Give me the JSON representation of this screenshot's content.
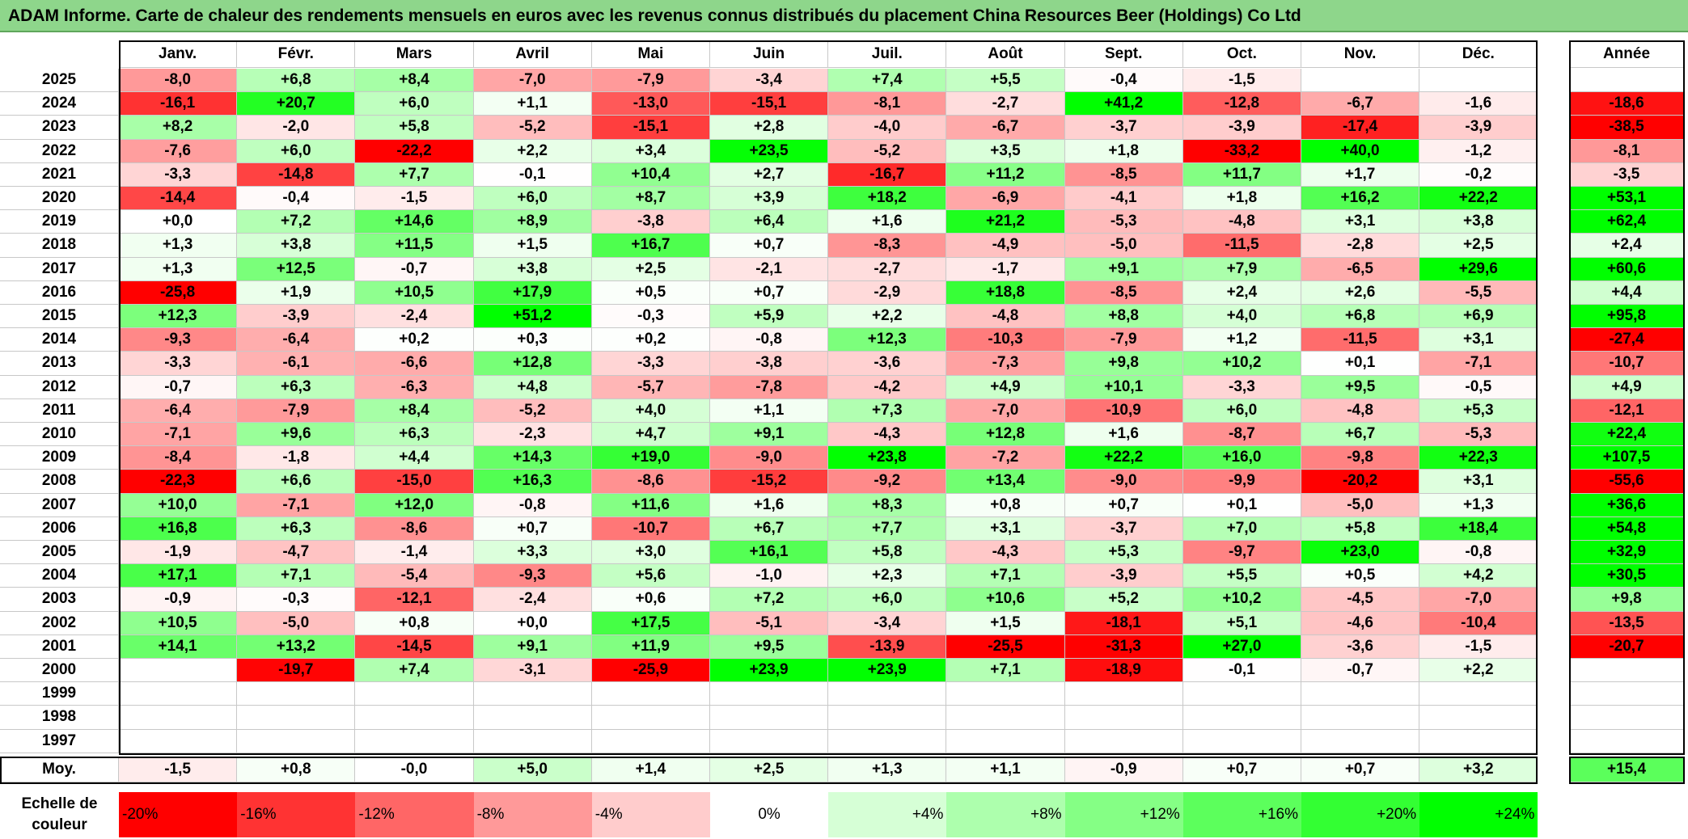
{
  "title": "ADAM Informe. Carte de chaleur des rendements mensuels en euros avec les revenus connus distribués du placement China Resources Beer (Holdings) Co Ltd",
  "chart_data": {
    "type": "heatmap",
    "title": "ADAM Informe. Carte de chaleur des rendements mensuels en euros avec les revenus connus distribués du placement China Resources Beer (Holdings) Co Ltd",
    "months": [
      "Janv.",
      "Févr.",
      "Mars",
      "Avril",
      "Mai",
      "Juin",
      "Juil.",
      "Août",
      "Sept.",
      "Oct.",
      "Nov.",
      "Déc."
    ],
    "year_header": "Année",
    "years": [
      2025,
      2024,
      2023,
      2022,
      2021,
      2020,
      2019,
      2018,
      2017,
      2016,
      2015,
      2014,
      2013,
      2012,
      2011,
      2010,
      2009,
      2008,
      2007,
      2006,
      2005,
      2004,
      2003,
      2002,
      2001,
      2000,
      1999,
      1998,
      1997
    ],
    "rows": [
      {
        "year": "2025",
        "values": [
          "-8,0",
          "+6,8",
          "+8,4",
          "-7,0",
          "-7,9",
          "-3,4",
          "+7,4",
          "+5,5",
          "-0,4",
          "-1,5",
          "",
          ""
        ],
        "annual": ""
      },
      {
        "year": "2024",
        "values": [
          "-16,1",
          "+20,7",
          "+6,0",
          "+1,1",
          "-13,0",
          "-15,1",
          "-8,1",
          "-2,7",
          "+41,2",
          "-12,8",
          "-6,7",
          "-1,6"
        ],
        "annual": "-18,6"
      },
      {
        "year": "2023",
        "values": [
          "+8,2",
          "-2,0",
          "+5,8",
          "-5,2",
          "-15,1",
          "+2,8",
          "-4,0",
          "-6,7",
          "-3,7",
          "-3,9",
          "-17,4",
          "-3,9"
        ],
        "annual": "-38,5"
      },
      {
        "year": "2022",
        "values": [
          "-7,6",
          "+6,0",
          "-22,2",
          "+2,2",
          "+3,4",
          "+23,5",
          "-5,2",
          "+3,5",
          "+1,8",
          "-33,2",
          "+40,0",
          "-1,2"
        ],
        "annual": "-8,1"
      },
      {
        "year": "2021",
        "values": [
          "-3,3",
          "-14,8",
          "+7,7",
          "-0,1",
          "+10,4",
          "+2,7",
          "-16,7",
          "+11,2",
          "-8,5",
          "+11,7",
          "+1,7",
          "-0,2"
        ],
        "annual": "-3,5"
      },
      {
        "year": "2020",
        "values": [
          "-14,4",
          "-0,4",
          "-1,5",
          "+6,0",
          "+8,7",
          "+3,9",
          "+18,2",
          "-6,9",
          "-4,1",
          "+1,8",
          "+16,2",
          "+22,2"
        ],
        "annual": "+53,1"
      },
      {
        "year": "2019",
        "values": [
          "+0,0",
          "+7,2",
          "+14,6",
          "+8,9",
          "-3,8",
          "+6,4",
          "+1,6",
          "+21,2",
          "-5,3",
          "-4,8",
          "+3,1",
          "+3,8"
        ],
        "annual": "+62,4"
      },
      {
        "year": "2018",
        "values": [
          "+1,3",
          "+3,8",
          "+11,5",
          "+1,5",
          "+16,7",
          "+0,7",
          "-8,3",
          "-4,9",
          "-5,0",
          "-11,5",
          "-2,8",
          "+2,5"
        ],
        "annual": "+2,4"
      },
      {
        "year": "2017",
        "values": [
          "+1,3",
          "+12,5",
          "-0,7",
          "+3,8",
          "+2,5",
          "-2,1",
          "-2,7",
          "-1,7",
          "+9,1",
          "+7,9",
          "-6,5",
          "+29,6"
        ],
        "annual": "+60,6"
      },
      {
        "year": "2016",
        "values": [
          "-25,8",
          "+1,9",
          "+10,5",
          "+17,9",
          "+0,5",
          "+0,7",
          "-2,9",
          "+18,8",
          "-8,5",
          "+2,4",
          "+2,6",
          "-5,5"
        ],
        "annual": "+4,4"
      },
      {
        "year": "2015",
        "values": [
          "+12,3",
          "-3,9",
          "-2,4",
          "+51,2",
          "-0,3",
          "+5,9",
          "+2,2",
          "-4,8",
          "+8,8",
          "+4,0",
          "+6,8",
          "+6,9"
        ],
        "annual": "+95,8"
      },
      {
        "year": "2014",
        "values": [
          "-9,3",
          "-6,4",
          "+0,2",
          "+0,3",
          "+0,2",
          "-0,8",
          "+12,3",
          "-10,3",
          "-7,9",
          "+1,2",
          "-11,5",
          "+3,1"
        ],
        "annual": "-27,4"
      },
      {
        "year": "2013",
        "values": [
          "-3,3",
          "-6,1",
          "-6,6",
          "+12,8",
          "-3,3",
          "-3,8",
          "-3,6",
          "-7,3",
          "+9,8",
          "+10,2",
          "+0,1",
          "-7,1"
        ],
        "annual": "-10,7"
      },
      {
        "year": "2012",
        "values": [
          "-0,7",
          "+6,3",
          "-6,3",
          "+4,8",
          "-5,7",
          "-7,8",
          "-4,2",
          "+4,9",
          "+10,1",
          "-3,3",
          "+9,5",
          "-0,5"
        ],
        "annual": "+4,9"
      },
      {
        "year": "2011",
        "values": [
          "-6,4",
          "-7,9",
          "+8,4",
          "-5,2",
          "+4,0",
          "+1,1",
          "+7,3",
          "-7,0",
          "-10,9",
          "+6,0",
          "-4,8",
          "+5,3"
        ],
        "annual": "-12,1"
      },
      {
        "year": "2010",
        "values": [
          "-7,1",
          "+9,6",
          "+6,3",
          "-2,3",
          "+4,7",
          "+9,1",
          "-4,3",
          "+12,8",
          "+1,6",
          "-8,7",
          "+6,7",
          "-5,3"
        ],
        "annual": "+22,4"
      },
      {
        "year": "2009",
        "values": [
          "-8,4",
          "-1,8",
          "+4,4",
          "+14,3",
          "+19,0",
          "-9,0",
          "+23,8",
          "-7,2",
          "+22,2",
          "+16,0",
          "-9,8",
          "+22,3"
        ],
        "annual": "+107,5"
      },
      {
        "year": "2008",
        "values": [
          "-22,3",
          "+6,6",
          "-15,0",
          "+16,3",
          "-8,6",
          "-15,2",
          "-9,2",
          "+13,4",
          "-9,0",
          "-9,9",
          "-20,2",
          "+3,1"
        ],
        "annual": "-55,6"
      },
      {
        "year": "2007",
        "values": [
          "+10,0",
          "-7,1",
          "+12,0",
          "-0,8",
          "+11,6",
          "+1,6",
          "+8,3",
          "+0,8",
          "+0,7",
          "+0,1",
          "-5,0",
          "+1,3"
        ],
        "annual": "+36,6"
      },
      {
        "year": "2006",
        "values": [
          "+16,8",
          "+6,3",
          "-8,6",
          "+0,7",
          "-10,7",
          "+6,7",
          "+7,7",
          "+3,1",
          "-3,7",
          "+7,0",
          "+5,8",
          "+18,4"
        ],
        "annual": "+54,8"
      },
      {
        "year": "2005",
        "values": [
          "-1,9",
          "-4,7",
          "-1,4",
          "+3,3",
          "+3,0",
          "+16,1",
          "+5,8",
          "-4,3",
          "+5,3",
          "-9,7",
          "+23,0",
          "-0,8"
        ],
        "annual": "+32,9"
      },
      {
        "year": "2004",
        "values": [
          "+17,1",
          "+7,1",
          "-5,4",
          "-9,3",
          "+5,6",
          "-1,0",
          "+2,3",
          "+7,1",
          "-3,9",
          "+5,5",
          "+0,5",
          "+4,2"
        ],
        "annual": "+30,5"
      },
      {
        "year": "2003",
        "values": [
          "-0,9",
          "-0,3",
          "-12,1",
          "-2,4",
          "+0,6",
          "+7,2",
          "+6,0",
          "+10,6",
          "+5,2",
          "+10,2",
          "-4,5",
          "-7,0"
        ],
        "annual": "+9,8"
      },
      {
        "year": "2002",
        "values": [
          "+10,5",
          "-5,0",
          "+0,8",
          "+0,0",
          "+17,5",
          "-5,1",
          "-3,4",
          "+1,5",
          "-18,1",
          "+5,1",
          "-4,6",
          "-10,4"
        ],
        "annual": "-13,5"
      },
      {
        "year": "2001",
        "values": [
          "+14,1",
          "+13,2",
          "-14,5",
          "+9,1",
          "+11,9",
          "+9,5",
          "-13,9",
          "-25,5",
          "-31,3",
          "+27,0",
          "-3,6",
          "-1,5"
        ],
        "annual": "-20,7"
      },
      {
        "year": "2000",
        "values": [
          "",
          "-19,7",
          "+7,4",
          "-3,1",
          "-25,9",
          "+23,9",
          "+23,9",
          "+7,1",
          "-18,9",
          "-0,1",
          "-0,7",
          "+2,2"
        ],
        "annual": ""
      },
      {
        "year": "1999",
        "values": [
          "",
          "",
          "",
          "",
          "",
          "",
          "",
          "",
          "",
          "",
          "",
          ""
        ],
        "annual": ""
      },
      {
        "year": "1998",
        "values": [
          "",
          "",
          "",
          "",
          "",
          "",
          "",
          "",
          "",
          "",
          "",
          ""
        ],
        "annual": ""
      },
      {
        "year": "1997",
        "values": [
          "",
          "",
          "",
          "",
          "",
          "",
          "",
          "",
          "",
          "",
          "",
          ""
        ],
        "annual": ""
      }
    ],
    "average": {
      "label": "Moy.",
      "values": [
        "-1,5",
        "+0,8",
        "-0,0",
        "+5,0",
        "+1,4",
        "+2,5",
        "+1,3",
        "+1,1",
        "-0,9",
        "+0,7",
        "+0,7",
        "+3,2"
      ],
      "annual": "+15,4"
    },
    "color_scale": {
      "label": "Echelle de couleur",
      "steps": [
        {
          "label": "-20%",
          "value": -20,
          "color": "#ff0000"
        },
        {
          "label": "-16%",
          "value": -16,
          "color": "#ff3333"
        },
        {
          "label": "-12%",
          "value": -12,
          "color": "#ff6666"
        },
        {
          "label": "-8%",
          "value": -8,
          "color": "#ff9999"
        },
        {
          "label": "-4%",
          "value": -4,
          "color": "#ffcccc"
        },
        {
          "label": "0%",
          "value": 0,
          "color": "#ffffff"
        },
        {
          "label": "+4%",
          "value": 4,
          "color": "#d6ffd6"
        },
        {
          "label": "+8%",
          "value": 8,
          "color": "#adffad"
        },
        {
          "label": "+12%",
          "value": 12,
          "color": "#85ff85"
        },
        {
          "label": "+16%",
          "value": 16,
          "color": "#5cff5c"
        },
        {
          "label": "+20%",
          "value": 20,
          "color": "#33ff33"
        },
        {
          "label": "+24%",
          "value": 24,
          "color": "#00ff00"
        }
      ]
    }
  }
}
